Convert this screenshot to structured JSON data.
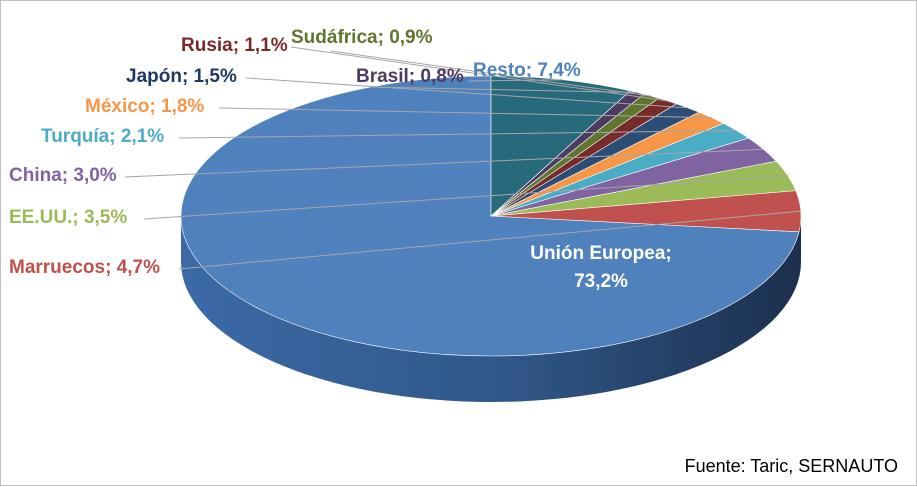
{
  "chart_data": {
    "type": "pie",
    "categories": [
      "Unión Europea",
      "Marruecos",
      "EE.UU.",
      "China",
      "Turquía",
      "México",
      "Japón",
      "Rusia",
      "Sudáfrica",
      "Brasil",
      "Resto"
    ],
    "values": [
      73.2,
      4.7,
      3.5,
      3.0,
      2.1,
      1.8,
      1.5,
      1.1,
      0.9,
      0.8,
      7.4
    ],
    "labels": [
      "Unión Europea;",
      "Marruecos; 4,7%",
      "EE.UU.; 3,5%",
      "China; 3,0%",
      "Turquía; 2,1%",
      "México; 1,8%",
      "Japón; 1,5%",
      "Rusia; 1,1%",
      "Sudáfrica; 0,9%",
      "Brasil; 0,8%",
      "Resto; 7,4%"
    ],
    "center_value_label": "73,2%",
    "colors": [
      "#4f81bd",
      "#c0504d",
      "#9bbb59",
      "#8064a2",
      "#4bacc6",
      "#f79646",
      "#2c4d75",
      "#772c2a",
      "#5f7530",
      "#4d3b62",
      "#276a7c"
    ],
    "label_colors": [
      "#ffffff",
      "#c0504d",
      "#9bbb59",
      "#8064a2",
      "#4bacc6",
      "#f79646",
      "#1f3864",
      "#772c2a",
      "#5f7530",
      "#4d3b62",
      "#4f81bd"
    ],
    "start": "top",
    "direction": "counterclockwise",
    "style": "3d",
    "legend": "none"
  },
  "source": "Fuente: Taric, SERNAUTO"
}
